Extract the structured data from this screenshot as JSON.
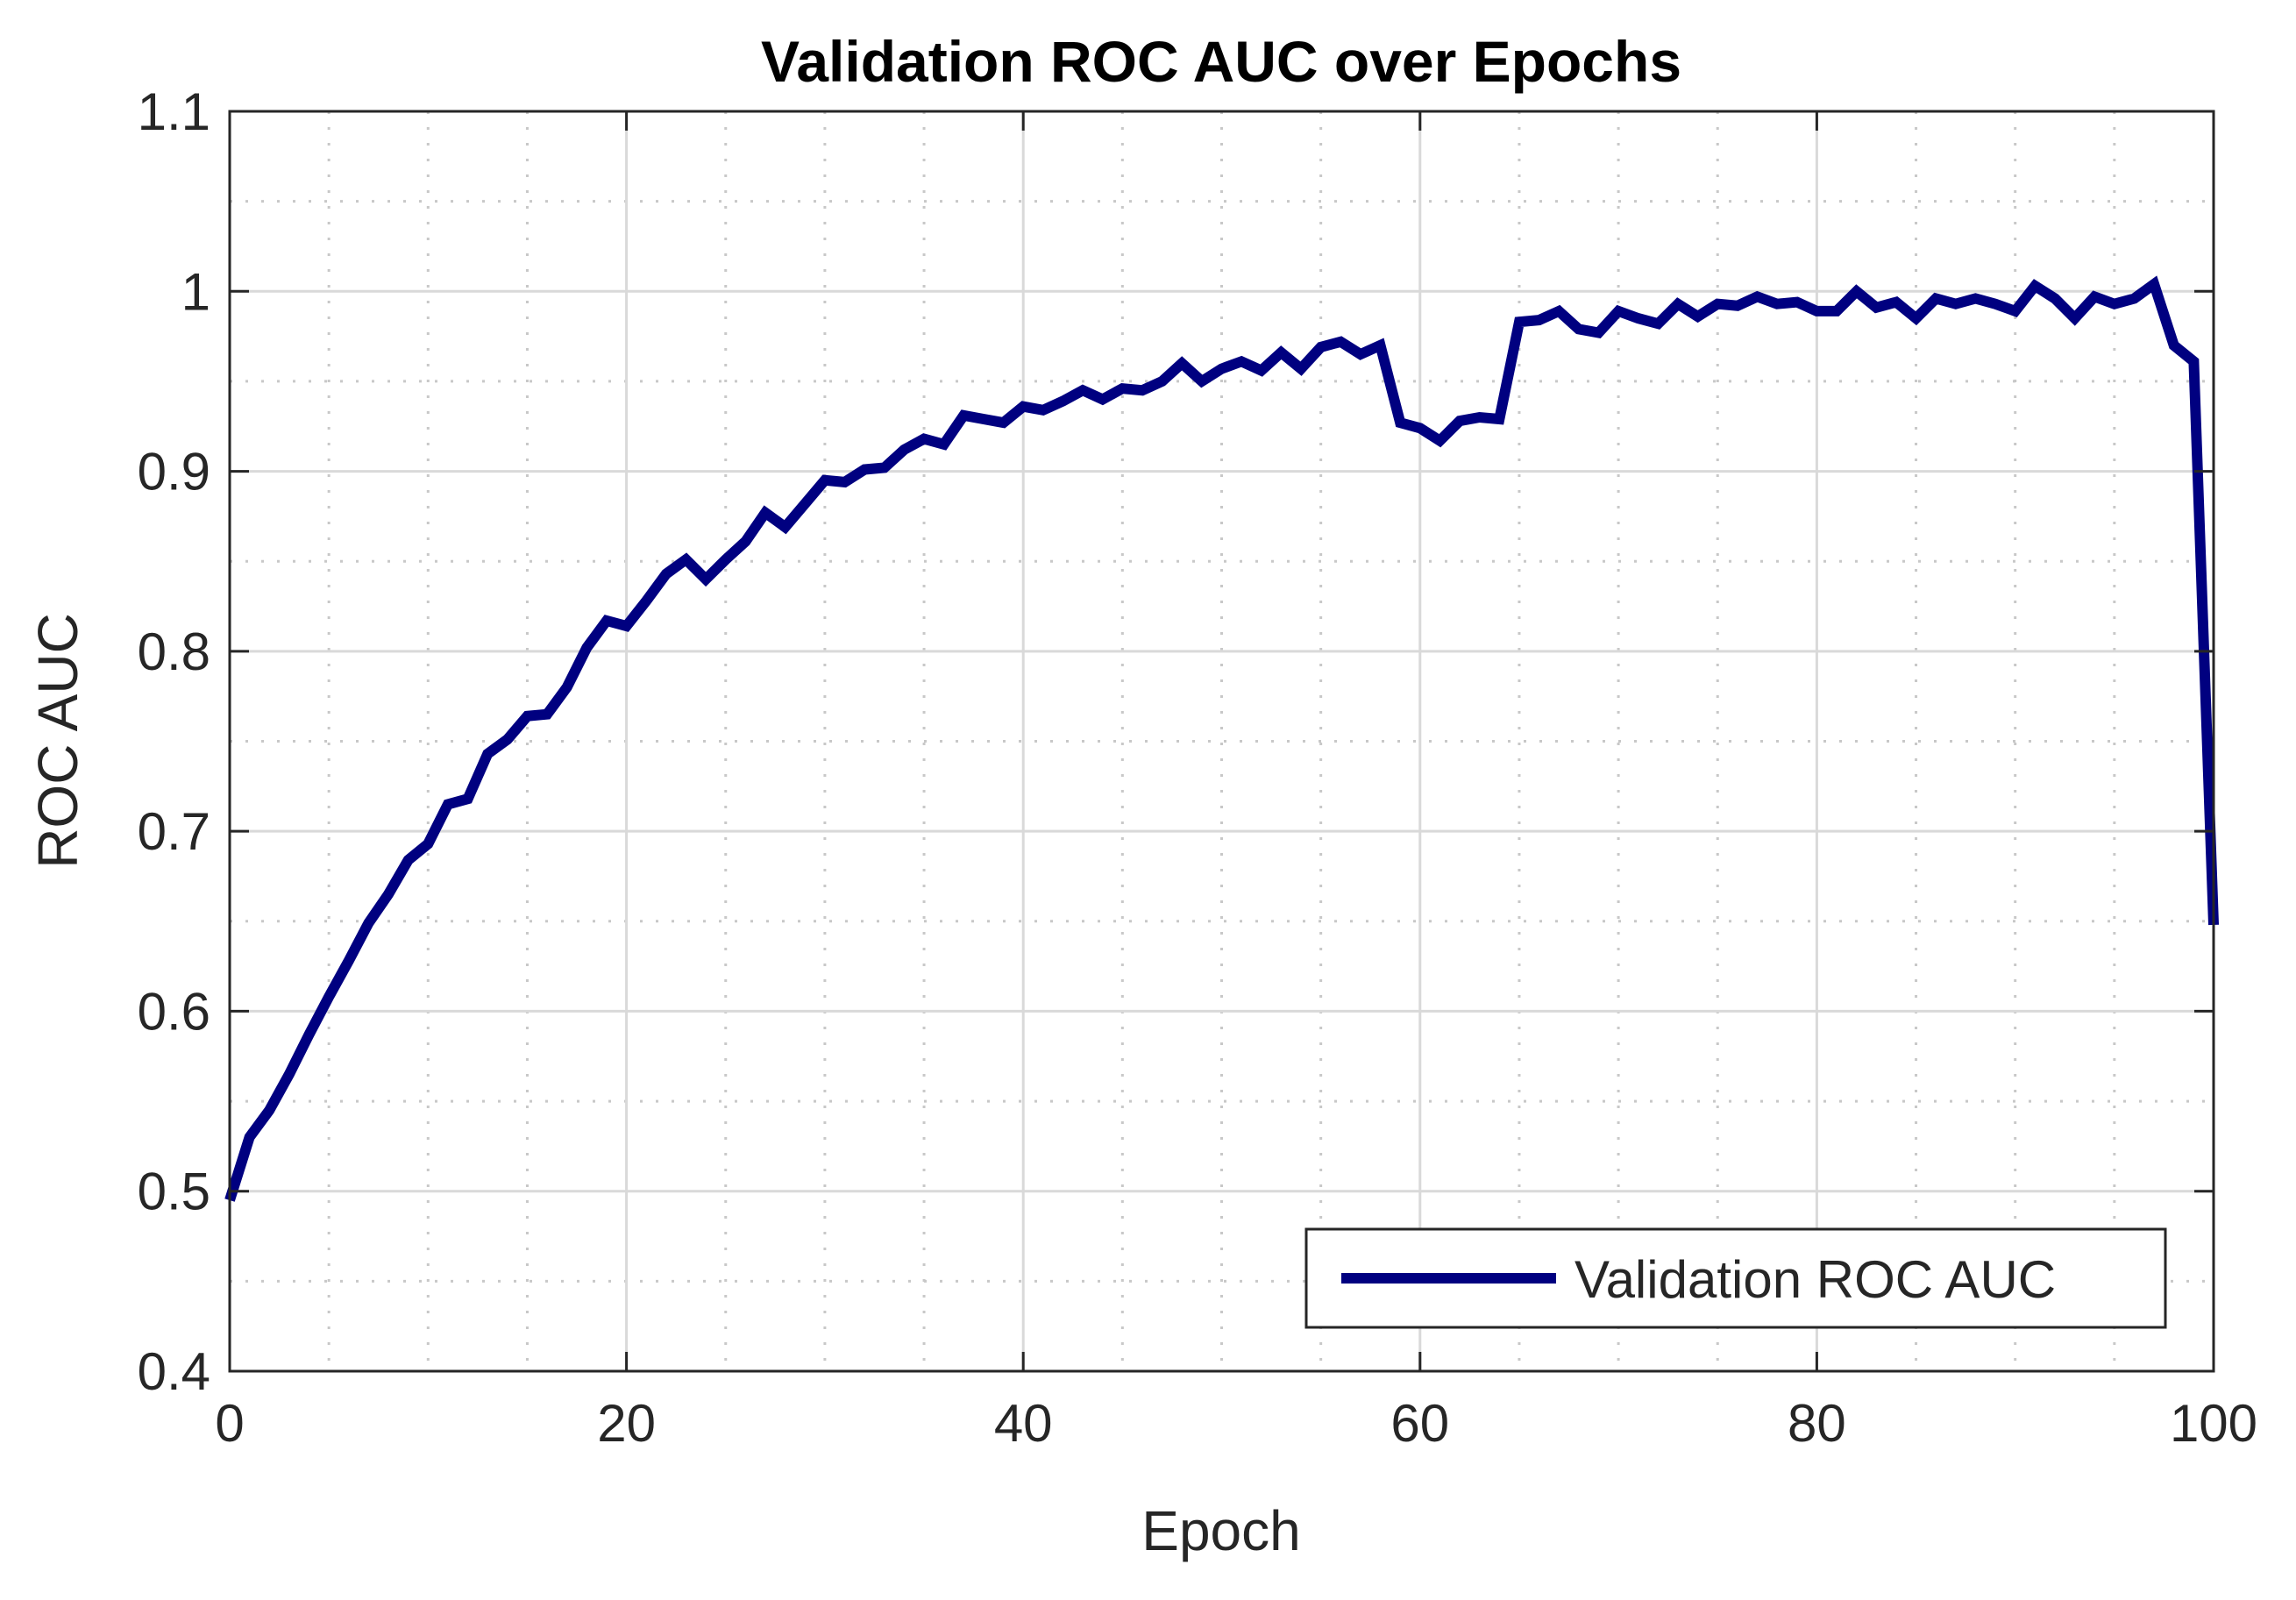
{
  "colors": {
    "series": "#000080",
    "grid_major": "#d9d9d9",
    "grid_minor": "#c8c8c8",
    "axes": "#262626",
    "background": "#ffffff"
  },
  "chart_data": {
    "type": "line",
    "title": "Validation ROC AUC over Epochs",
    "xlabel": "Epoch",
    "ylabel": "ROC AUC",
    "xlim": [
      0,
      100
    ],
    "ylim": [
      0.4,
      1.1
    ],
    "xticks": [
      0,
      20,
      40,
      60,
      80,
      100
    ],
    "xtick_labels": [
      "0",
      "20",
      "40",
      "60",
      "80",
      "100"
    ],
    "yticks": [
      0.4,
      0.5,
      0.6,
      0.7,
      0.8,
      0.9,
      1.0,
      1.1
    ],
    "ytick_labels": [
      "0.4",
      "0.5",
      "0.6",
      "0.7",
      "0.8",
      "0.9",
      "1",
      "1.1"
    ],
    "grid": "on (major solid, minor dotted)",
    "legend_position": "bottom-right",
    "series": [
      {
        "name": "Validation ROC AUC",
        "x": [
          0,
          1,
          2,
          3,
          4,
          5,
          6,
          7,
          8,
          9,
          10,
          11,
          12,
          13,
          14,
          15,
          16,
          17,
          18,
          19,
          20,
          21,
          22,
          23,
          24,
          25,
          26,
          27,
          28,
          29,
          30,
          31,
          32,
          33,
          34,
          35,
          36,
          37,
          38,
          39,
          40,
          41,
          42,
          43,
          44,
          45,
          46,
          47,
          48,
          49,
          50,
          51,
          52,
          53,
          54,
          55,
          56,
          57,
          58,
          59,
          60,
          61,
          62,
          63,
          64,
          65,
          66,
          67,
          68,
          69,
          70,
          71,
          72,
          73,
          74,
          75,
          76,
          77,
          78,
          79,
          80,
          81,
          82,
          83,
          84,
          85,
          86,
          87,
          88,
          89,
          90,
          91,
          92,
          93,
          94,
          95,
          96,
          97,
          98,
          99,
          100
        ],
        "y": [
          0.495,
          0.53,
          0.545,
          0.565,
          0.587,
          0.608,
          0.628,
          0.649,
          0.665,
          0.684,
          0.693,
          0.715,
          0.718,
          0.743,
          0.751,
          0.764,
          0.765,
          0.78,
          0.802,
          0.817,
          0.814,
          0.828,
          0.843,
          0.851,
          0.84,
          0.851,
          0.861,
          0.877,
          0.869,
          0.882,
          0.895,
          0.894,
          0.901,
          0.902,
          0.912,
          0.918,
          0.915,
          0.931,
          0.929,
          0.927,
          0.936,
          0.934,
          0.939,
          0.945,
          0.94,
          0.946,
          0.945,
          0.95,
          0.96,
          0.95,
          0.957,
          0.961,
          0.956,
          0.966,
          0.957,
          0.969,
          0.972,
          0.965,
          0.97,
          0.927,
          0.924,
          0.917,
          0.928,
          0.93,
          0.929,
          0.983,
          0.984,
          0.989,
          0.979,
          0.977,
          0.989,
          0.985,
          0.982,
          0.993,
          0.986,
          0.993,
          0.992,
          0.997,
          0.993,
          0.994,
          0.989,
          0.989,
          1.0,
          0.991,
          0.994,
          0.985,
          0.996,
          0.993,
          0.996,
          0.993,
          0.989,
          1.003,
          0.996,
          0.985,
          0.997,
          0.993,
          0.996,
          1.004,
          0.97,
          0.961,
          0.648
        ]
      }
    ]
  }
}
